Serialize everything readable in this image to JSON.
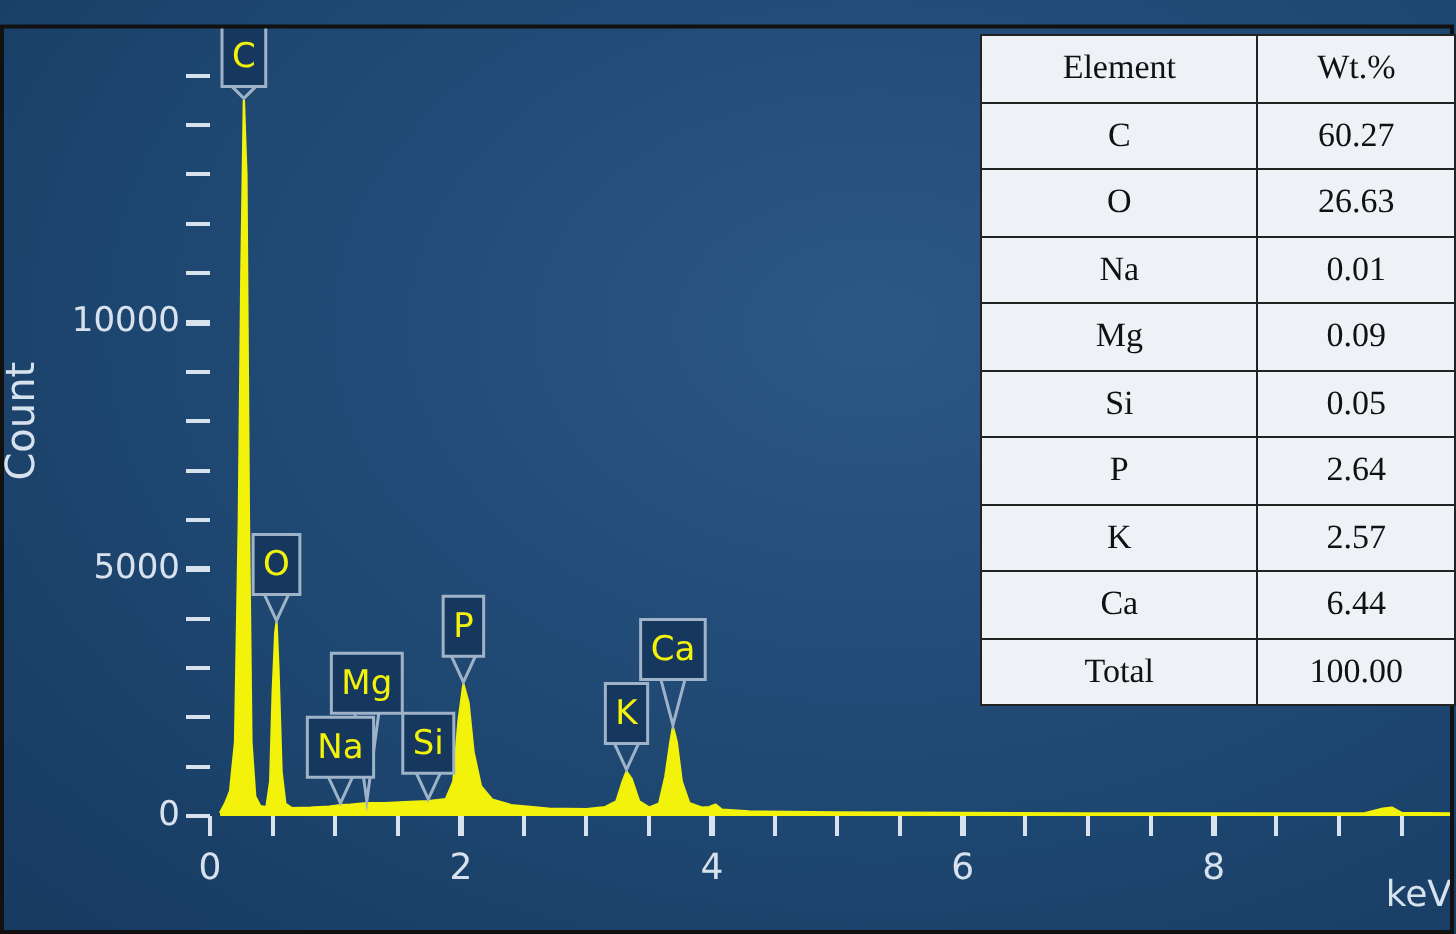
{
  "chart_data": [
    {
      "type": "area",
      "xlabel": "keV",
      "ylabel": "Count",
      "color": "#f2f20a",
      "x": [
        0.08,
        0.12,
        0.16,
        0.2,
        0.23,
        0.25,
        0.27,
        0.28,
        0.29,
        0.31,
        0.33,
        0.36,
        0.4,
        0.45,
        0.48,
        0.5,
        0.52,
        0.53,
        0.545,
        0.57,
        0.6,
        0.65,
        0.8,
        0.95,
        1.04,
        1.12,
        1.25,
        1.4,
        1.55,
        1.74,
        1.88,
        1.94,
        1.98,
        2.02,
        2.06,
        2.1,
        2.16,
        2.25,
        2.4,
        2.7,
        3.0,
        3.15,
        3.24,
        3.29,
        3.32,
        3.36,
        3.42,
        3.5,
        3.58,
        3.63,
        3.67,
        3.69,
        3.72,
        3.76,
        3.82,
        3.92,
        3.98,
        4.03,
        4.08,
        4.3,
        5.0,
        6.0,
        7.0,
        8.0,
        9.2,
        9.35,
        9.42,
        9.5,
        9.9
      ],
      "values": [
        60,
        250,
        500,
        1500,
        6000,
        11000,
        14500,
        null,
        13000,
        6000,
        1500,
        400,
        200,
        180,
        700,
        2500,
        3700,
        3920,
        3000,
        900,
        250,
        160,
        170,
        190,
        220,
        230,
        260,
        260,
        280,
        300,
        340,
        700,
        1900,
        2670,
        2300,
        1300,
        600,
        330,
        220,
        150,
        140,
        180,
        300,
        700,
        900,
        750,
        300,
        170,
        250,
        800,
        1500,
        1800,
        1500,
        700,
        260,
        170,
        180,
        230,
        130,
        90,
        70,
        60,
        50,
        50,
        50,
        150,
        170,
        60,
        50
      ],
      "xlim": [
        0,
        9.9
      ],
      "xticks": [
        0,
        {
          "value": 0.5,
          "label": null
        },
        {
          "value": 1,
          "label": null
        },
        {
          "value": 1.5,
          "label": null
        },
        2,
        {
          "value": 2.5,
          "label": null
        },
        {
          "value": 3,
          "label": null
        },
        {
          "value": 3.5,
          "label": null
        },
        4,
        {
          "value": 4.5,
          "label": null
        },
        {
          "value": 5,
          "label": null
        },
        {
          "value": 5.5,
          "label": null
        },
        6,
        {
          "value": 6.5,
          "label": null
        },
        {
          "value": 7,
          "label": null
        },
        {
          "value": 7.5,
          "label": null
        },
        8,
        {
          "value": 8.5,
          "label": null
        },
        {
          "value": 9,
          "label": null
        },
        {
          "value": 9.5,
          "label": null
        }
      ],
      "ylim": [
        0,
        16000
      ],
      "yticks": [
        0,
        {
          "value": 1000,
          "label": null
        },
        {
          "value": 2000,
          "label": null
        },
        {
          "value": 3000,
          "label": null
        },
        {
          "value": 4000,
          "label": null
        },
        5000,
        {
          "value": 6000,
          "label": null
        },
        {
          "value": 7000,
          "label": null
        },
        {
          "value": 8000,
          "label": null
        },
        {
          "value": 9000,
          "label": null
        },
        10000,
        {
          "value": 11000,
          "label": null
        },
        {
          "value": 12000,
          "label": null
        },
        {
          "value": 13000,
          "label": null
        },
        {
          "value": 14000,
          "label": null
        },
        {
          "value": 15000,
          "label": null
        }
      ],
      "annotations": [
        {
          "text": "C",
          "x": 0.27,
          "y": 14500
        },
        {
          "text": "O",
          "x": 0.53,
          "y": 3920
        },
        {
          "text": "Na",
          "x": 1.04,
          "y": 220
        },
        {
          "text": "Mg",
          "x": 1.25,
          "y": 260
        },
        {
          "text": "Si",
          "x": 1.74,
          "y": 300
        },
        {
          "text": "P",
          "x": 2.02,
          "y": 2670
        },
        {
          "text": "K",
          "x": 3.32,
          "y": 900
        },
        {
          "text": "Ca",
          "x": 3.69,
          "y": 1800
        }
      ]
    },
    {
      "type": "other",
      "xlabel": "Element",
      "ylabel": "Wt.%",
      "categories": [
        "C",
        "O",
        "Na",
        "Mg",
        "Si",
        "P",
        "K",
        "Ca",
        "Total"
      ],
      "values": [
        60.27,
        26.63,
        0.01,
        0.09,
        0.05,
        2.64,
        2.57,
        6.44,
        100.0
      ],
      "value_labels": [
        "60.27",
        "26.63",
        "0.01",
        "0.09",
        "0.05",
        "2.64",
        "2.57",
        "6.44",
        "100.00"
      ]
    }
  ]
}
